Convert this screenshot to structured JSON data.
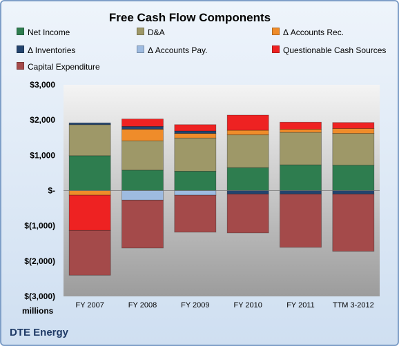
{
  "chart_data": {
    "type": "bar",
    "title": "Free Cash Flow Components",
    "ylabel": "millions",
    "xlabel": "",
    "company": "DTE Energy",
    "categories": [
      "FY 2007",
      "FY 2008",
      "FY 2009",
      "FY 2010",
      "FY 2011",
      "TTM 3-2012"
    ],
    "ylim": [
      -3000,
      3000
    ],
    "yticks": [
      3000,
      2000,
      1000,
      0,
      -1000,
      -2000,
      -3000
    ],
    "ytick_labels": [
      "$3,000",
      "$2,000",
      "$1,000",
      "$-",
      "$(1,000)",
      "$(2,000)",
      "$(3,000)"
    ],
    "grid": false,
    "legend_position": "top",
    "stacked": true,
    "series": [
      {
        "name": "Net Income",
        "color": "#2e7d4f",
        "values": [
          990,
          580,
          550,
          650,
          730,
          720
        ]
      },
      {
        "name": "D&A",
        "color": "#9e9868",
        "values": [
          880,
          830,
          940,
          930,
          920,
          900
        ]
      },
      {
        "name": "Δ Accounts Rec.",
        "color": "#ef8c2a",
        "values": [
          -130,
          330,
          130,
          130,
          90,
          140
        ]
      },
      {
        "name": "Δ Inventories",
        "color": "#23446e",
        "values": [
          50,
          80,
          70,
          -100,
          -100,
          -100
        ]
      },
      {
        "name": "Δ Accounts Pay.",
        "color": "#9ebbe0",
        "values": [
          0,
          -270,
          -130,
          0,
          0,
          0
        ]
      },
      {
        "name": "Questionable Cash Sources",
        "color": "#ee2222",
        "values": [
          -1000,
          210,
          180,
          430,
          200,
          170
        ]
      },
      {
        "name": "Capital Expenditure",
        "color": "#a44a4a",
        "values": [
          -1270,
          -1360,
          -1050,
          -1100,
          -1510,
          -1620
        ]
      }
    ]
  }
}
